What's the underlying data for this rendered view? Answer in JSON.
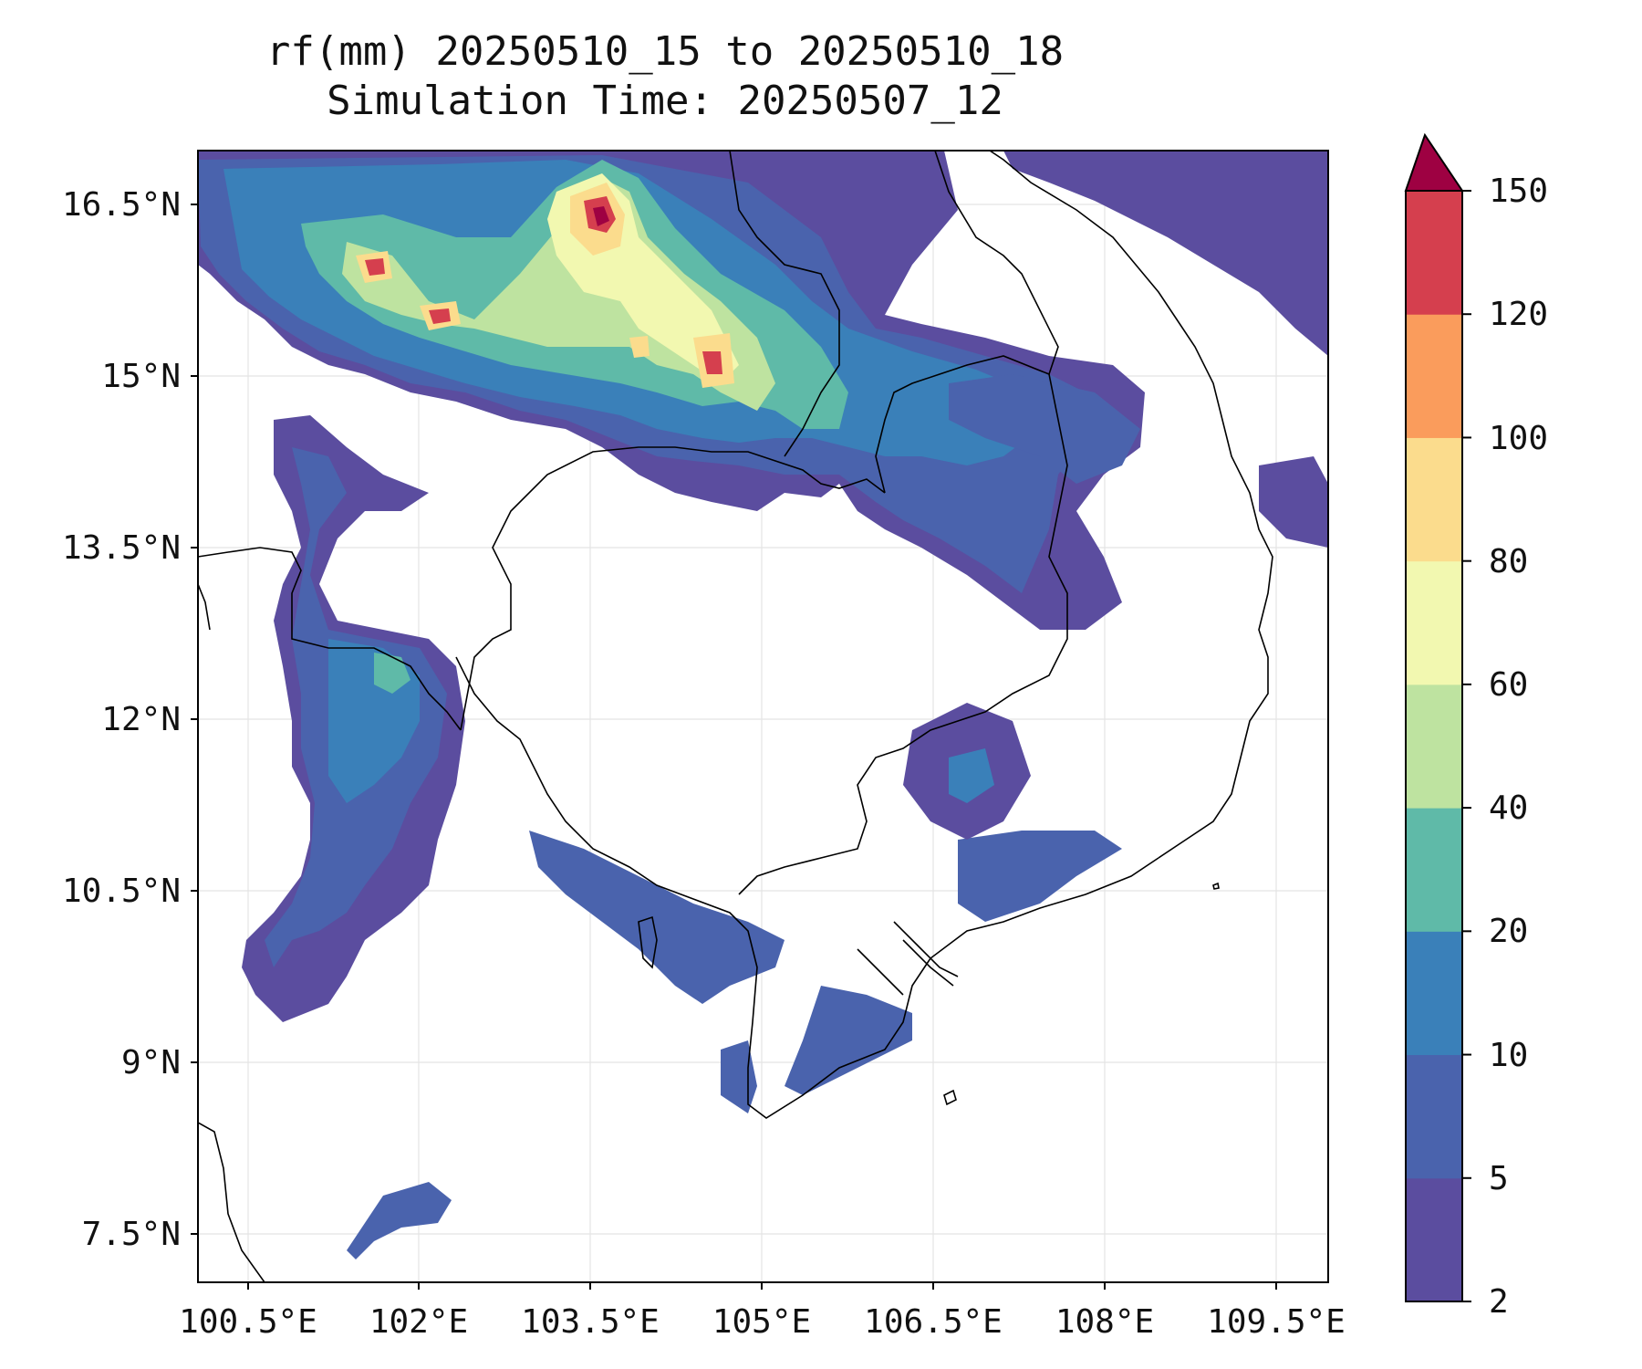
{
  "title": {
    "line1": "rf(mm) 20250510_15 to 20250510_18",
    "line2": "Simulation Time: 20250507_12"
  },
  "map": {
    "lon_range": [
      100.5,
      109.5
    ],
    "lat_range": [
      7.5,
      16.5
    ],
    "x_ticks": [
      "100.5°E",
      "102°E",
      "103.5°E",
      "105°E",
      "106.5°E",
      "108°E",
      "109.5°E"
    ],
    "y_ticks": [
      "16.5°N",
      "15°N",
      "13.5°N",
      "12°N",
      "10.5°N",
      "9°N",
      "7.5°N"
    ],
    "gridlines": true,
    "coastlines": true,
    "borders": true
  },
  "colorbar": {
    "levels": [
      "2",
      "5",
      "10",
      "20",
      "40",
      "60",
      "80",
      "100",
      "120",
      "150"
    ],
    "colors": [
      "#5b4d9f",
      "#4a63ad",
      "#3a80b9",
      "#5fbaa8",
      "#bee3a0",
      "#f2f8b0",
      "#fbdc8d",
      "#fa9c5c",
      "#d53f4e"
    ],
    "extend_color": "#9e0142",
    "extend": "max"
  }
}
